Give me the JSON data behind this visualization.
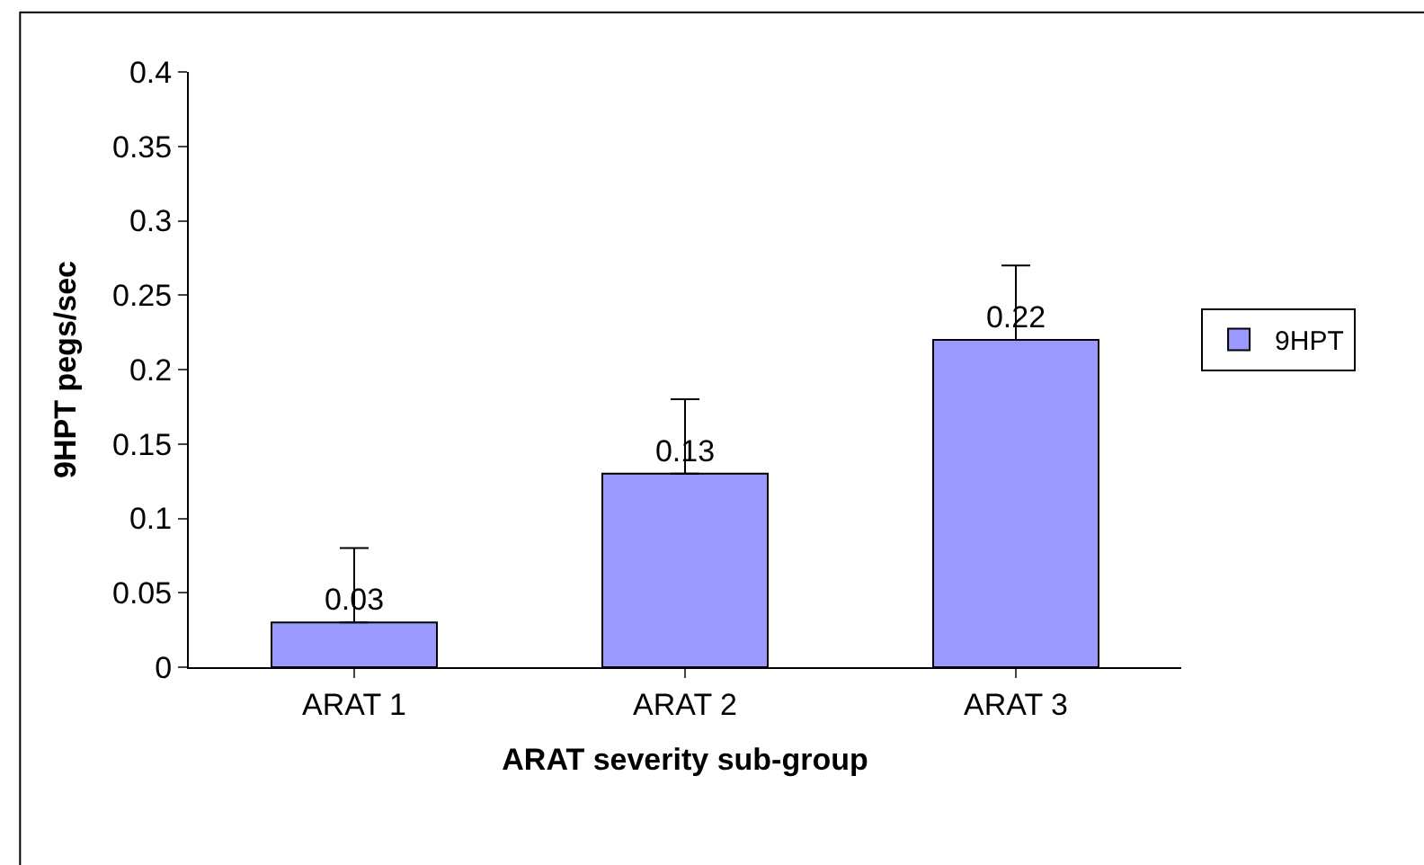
{
  "chart_data": {
    "type": "bar",
    "xlabel": "ARAT severity sub-group",
    "ylabel": "9HPT pegs/sec",
    "categories": [
      "ARAT 1",
      "ARAT 2",
      "ARAT 3"
    ],
    "series": [
      {
        "name": "9HPT",
        "color": "#9999ff",
        "values": [
          0.03,
          0.13,
          0.22
        ],
        "errors": [
          [
            0.03,
            0.08
          ],
          [
            0.13,
            0.18
          ],
          [
            0.22,
            0.27
          ]
        ]
      }
    ],
    "ylim": [
      0,
      0.4
    ],
    "yticks": [
      {
        "value": 0,
        "label": "0"
      },
      0.05,
      0.1,
      0.15,
      0.2,
      0.25,
      0.3,
      0.35,
      0.4
    ],
    "data_labels": true,
    "grid": false,
    "legend": "right"
  }
}
